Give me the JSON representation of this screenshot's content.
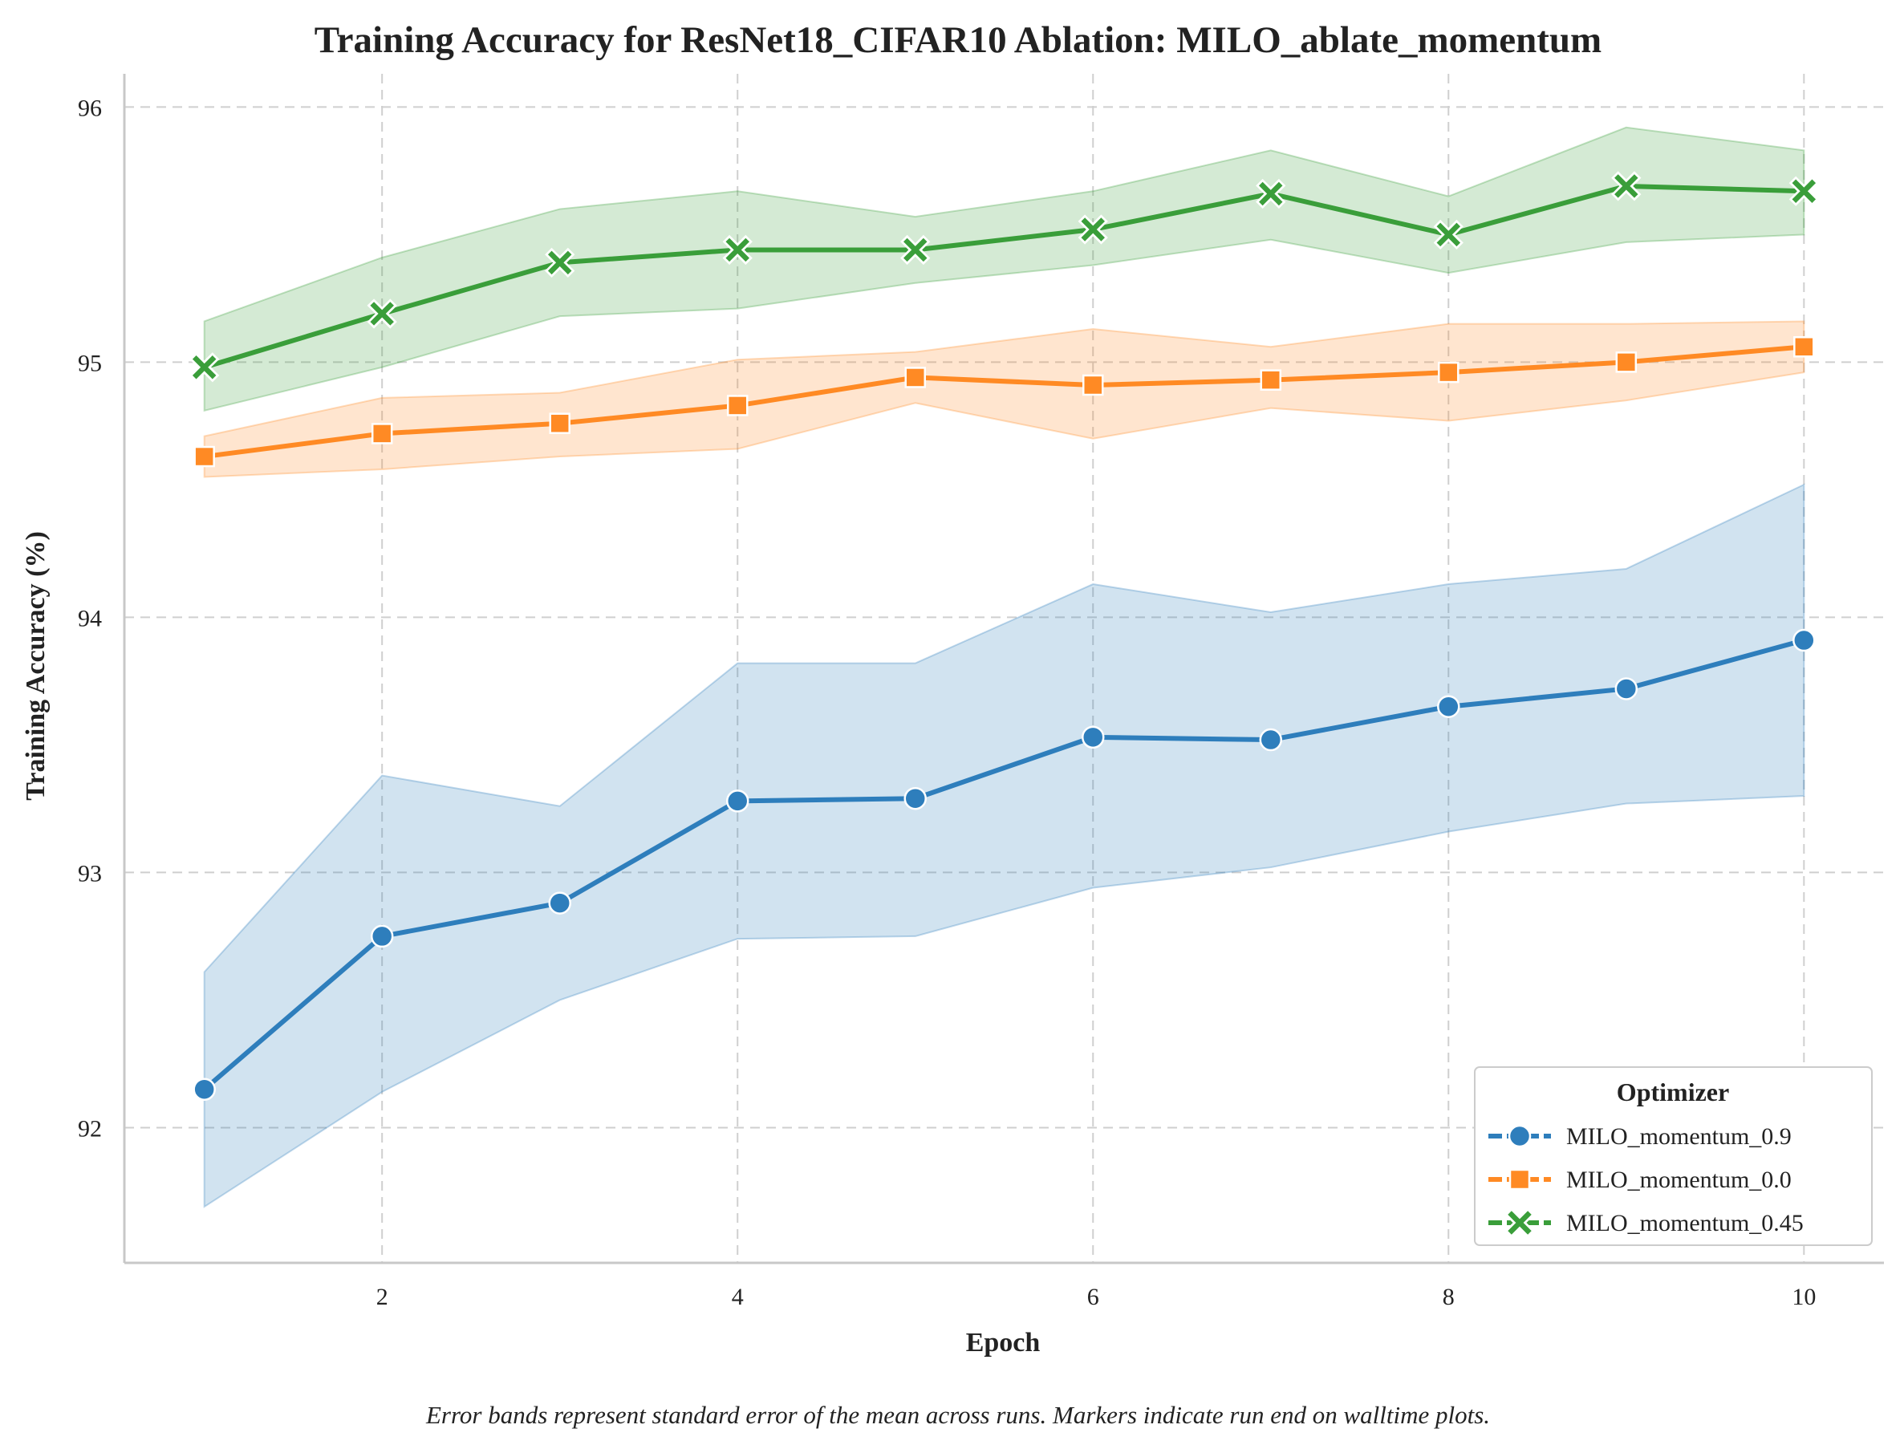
{
  "chart_data": {
    "type": "line",
    "title": "Training Accuracy for ResNet18_CIFAR10 Ablation: MILO_ablate_momentum",
    "xlabel": "Epoch",
    "ylabel": "Training Accuracy (%)",
    "xlim": [
      0.55,
      10.45
    ],
    "ylim": [
      91.47,
      96.13
    ],
    "xticks": [
      2,
      4,
      6,
      8,
      10
    ],
    "yticks": [
      92,
      93,
      94,
      95,
      96
    ],
    "grid": true,
    "legend": {
      "title": "Optimizer",
      "placement": "bottom-right"
    },
    "caption": "Error bands represent standard error of the mean across runs. Markers indicate run end on walltime plots.",
    "x": [
      1,
      2,
      3,
      4,
      5,
      6,
      7,
      8,
      9,
      10
    ],
    "series": [
      {
        "name": "MILO_momentum_0.9",
        "color": "#2e7ebc",
        "marker": "circle",
        "values": [
          92.15,
          92.75,
          92.88,
          93.28,
          93.29,
          93.53,
          93.52,
          93.65,
          93.72,
          93.91
        ],
        "band_upper": [
          92.61,
          93.38,
          93.26,
          93.82,
          93.82,
          94.13,
          94.02,
          94.13,
          94.19,
          94.52
        ],
        "band_lower": [
          91.69,
          92.14,
          92.5,
          92.74,
          92.75,
          92.94,
          93.02,
          93.16,
          93.27,
          93.3
        ]
      },
      {
        "name": "MILO_momentum_0.0",
        "color": "#ff8a24",
        "marker": "square",
        "values": [
          94.63,
          94.72,
          94.76,
          94.83,
          94.94,
          94.91,
          94.93,
          94.96,
          95.0,
          95.06
        ],
        "band_upper": [
          94.71,
          94.86,
          94.88,
          95.01,
          95.04,
          95.13,
          95.06,
          95.15,
          95.15,
          95.16
        ],
        "band_lower": [
          94.55,
          94.58,
          94.63,
          94.66,
          94.84,
          94.7,
          94.82,
          94.77,
          94.85,
          94.96
        ]
      },
      {
        "name": "MILO_momentum_0.45",
        "color": "#3a9e3a",
        "marker": "x",
        "values": [
          94.98,
          95.19,
          95.39,
          95.44,
          95.44,
          95.52,
          95.66,
          95.5,
          95.69,
          95.67
        ],
        "band_upper": [
          95.16,
          95.41,
          95.6,
          95.67,
          95.57,
          95.67,
          95.83,
          95.65,
          95.92,
          95.83
        ],
        "band_lower": [
          94.81,
          94.98,
          95.18,
          95.21,
          95.31,
          95.38,
          95.48,
          95.35,
          95.47,
          95.5
        ]
      }
    ]
  }
}
